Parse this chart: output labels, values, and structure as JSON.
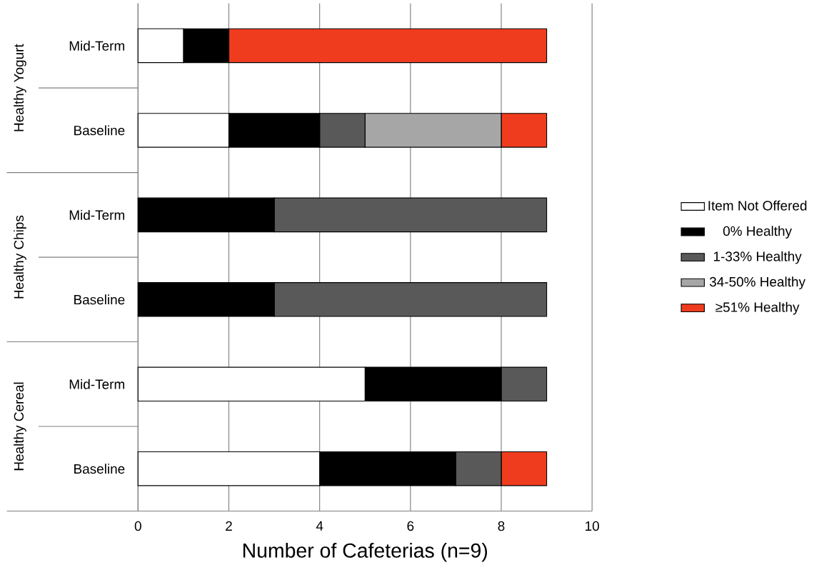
{
  "chart_data": {
    "type": "bar",
    "orientation": "horizontal",
    "stacked": true,
    "categories": [
      "Mid-Term",
      "Baseline",
      "Mid-Term",
      "Baseline",
      "Mid-Term",
      "Baseline"
    ],
    "series": [
      {
        "name": "Item Not Offered",
        "color": "#ffffff",
        "values": [
          1,
          2,
          0,
          0,
          5,
          4
        ]
      },
      {
        "name": "0% Healthy",
        "color": "#000000",
        "values": [
          1,
          2,
          3,
          3,
          3,
          3
        ]
      },
      {
        "name": "1-33% Healthy",
        "color": "#595959",
        "values": [
          0,
          1,
          6,
          6,
          1,
          1
        ]
      },
      {
        "name": "34-50% Healthy",
        "color": "#a6a6a6",
        "values": [
          0,
          3,
          0,
          0,
          0,
          0
        ]
      },
      {
        "name": "≥51% Healthy",
        "color": "#f03c1e",
        "values": [
          7,
          1,
          0,
          0,
          0,
          1
        ]
      }
    ],
    "xlabel": "Number of Cafeterias (n=9)",
    "xlim": [
      0,
      10
    ],
    "xticks": [
      0,
      2,
      4,
      6,
      8,
      10
    ],
    "grid": "x",
    "legend": "right",
    "annotations": [
      "Healthy Yogurt",
      "Healthy Chips",
      "Healthy Cereal"
    ]
  }
}
